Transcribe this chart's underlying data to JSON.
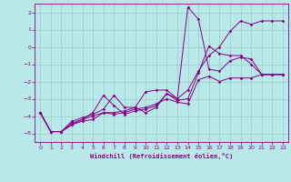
{
  "title": "",
  "xlabel": "Windchill (Refroidissement éolien,°C)",
  "xlim": [
    -0.5,
    23.5
  ],
  "ylim": [
    -5.5,
    2.5
  ],
  "yticks": [
    -5,
    -4,
    -3,
    -2,
    -1,
    0,
    1,
    2
  ],
  "xticks": [
    0,
    1,
    2,
    3,
    4,
    5,
    6,
    7,
    8,
    9,
    10,
    11,
    12,
    13,
    14,
    15,
    16,
    17,
    18,
    19,
    20,
    21,
    22,
    23
  ],
  "bg_color": "#b8e8e8",
  "line_color": "#880088",
  "grid_color": "#99cccc",
  "lines": [
    {
      "x": [
        0,
        1,
        2,
        3,
        4,
        5,
        6,
        7,
        8,
        9,
        10,
        11,
        12,
        13,
        14,
        15,
        16,
        17,
        18,
        19,
        20,
        21,
        22,
        23
      ],
      "y": [
        -3.8,
        -4.9,
        -4.9,
        -4.5,
        -4.3,
        -4.2,
        -3.8,
        -3.8,
        -3.7,
        -3.5,
        -2.6,
        -2.5,
        -2.5,
        -3.0,
        -2.5,
        -1.4,
        -0.5,
        0.0,
        0.9,
        1.5,
        1.3,
        1.5,
        1.5,
        1.5
      ]
    },
    {
      "x": [
        0,
        1,
        2,
        3,
        4,
        5,
        6,
        7,
        8,
        9,
        10,
        11,
        12,
        13,
        14,
        15,
        16,
        17,
        18,
        19,
        20,
        21,
        22,
        23
      ],
      "y": [
        -3.8,
        -4.9,
        -4.9,
        -4.4,
        -4.2,
        -3.8,
        -2.8,
        -3.4,
        -3.9,
        -3.7,
        -3.6,
        -3.4,
        -2.7,
        -3.0,
        2.3,
        1.6,
        -1.3,
        -1.4,
        -0.8,
        -0.6,
        -0.7,
        -1.6,
        -1.6,
        -1.6
      ]
    },
    {
      "x": [
        0,
        1,
        2,
        3,
        4,
        5,
        6,
        7,
        8,
        9,
        10,
        11,
        12,
        13,
        14,
        15,
        16,
        17,
        18,
        19,
        20,
        21,
        22,
        23
      ],
      "y": [
        -3.8,
        -4.9,
        -4.9,
        -4.3,
        -4.1,
        -3.9,
        -3.6,
        -2.8,
        -3.5,
        -3.5,
        -3.8,
        -3.5,
        -2.7,
        -3.1,
        -3.0,
        -1.5,
        0.05,
        -0.4,
        -0.5,
        -0.5,
        -1.0,
        -1.6,
        -1.6,
        -1.6
      ]
    },
    {
      "x": [
        0,
        1,
        2,
        3,
        4,
        5,
        6,
        7,
        8,
        9,
        10,
        11,
        12,
        13,
        14,
        15,
        16,
        17,
        18,
        19,
        20,
        21,
        22,
        23
      ],
      "y": [
        -3.8,
        -4.9,
        -4.9,
        -4.5,
        -4.2,
        -4.0,
        -3.8,
        -3.9,
        -3.8,
        -3.6,
        -3.5,
        -3.3,
        -3.0,
        -3.2,
        -3.3,
        -1.9,
        -1.7,
        -2.0,
        -1.8,
        -1.8,
        -1.8,
        -1.6,
        -1.6,
        -1.6
      ]
    }
  ]
}
